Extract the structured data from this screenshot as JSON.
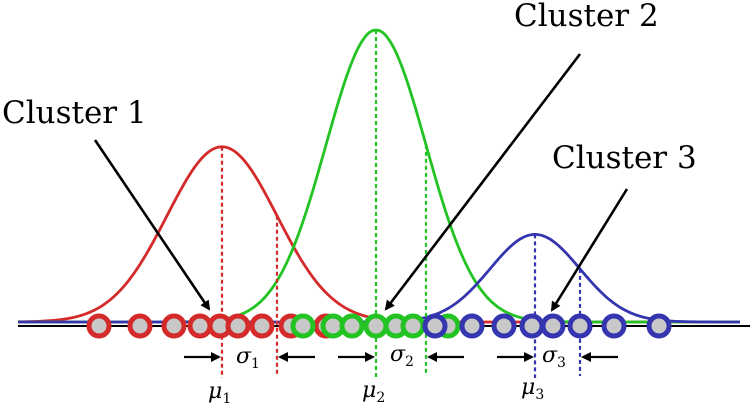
{
  "colors": {
    "cluster1": "#d42a2a",
    "cluster2": "#22c322",
    "cluster3": "#3535b0",
    "axis": "#000000",
    "point_fill": "#c8c8c8"
  },
  "clusters": [
    {
      "id": "cluster1",
      "label": "Cluster 1",
      "mu_symbol": "μ",
      "mu_sub": "1",
      "sigma_symbol": "σ",
      "sigma_sub": "1",
      "mu": 222,
      "sigma": 55,
      "peak": 0.6,
      "points": [
        99,
        140,
        174,
        200,
        220,
        238,
        262,
        291,
        326
      ]
    },
    {
      "id": "cluster2",
      "label": "Cluster 2",
      "mu_symbol": "μ",
      "mu_sub": "2",
      "sigma_symbol": "σ",
      "sigma_sub": "2",
      "mu": 376,
      "sigma": 50,
      "peak": 1.0,
      "points": [
        303,
        333,
        352,
        376,
        396,
        413,
        448
      ]
    },
    {
      "id": "cluster3",
      "label": "Cluster 3",
      "mu_symbol": "μ",
      "mu_sub": "3",
      "sigma_symbol": "σ",
      "sigma_sub": "3",
      "mu": 535,
      "sigma": 45,
      "peak": 0.3,
      "points": [
        435,
        472,
        504,
        532,
        553,
        580,
        614,
        659
      ]
    }
  ]
}
